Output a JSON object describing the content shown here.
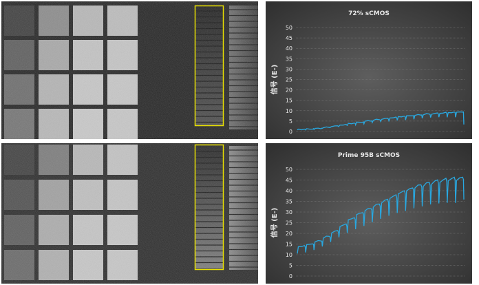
{
  "charts": [
    {
      "title": "72% sCMOS",
      "ylabel": "信号 (E-)",
      "ylim": [
        0,
        50
      ],
      "yticks": [
        "0",
        "5",
        "10",
        "15",
        "20",
        "25",
        "30",
        "35",
        "40",
        "45",
        "50"
      ]
    },
    {
      "title": "Prime 95B sCMOS",
      "ylabel": "信号 (E-)",
      "ylim": [
        0,
        50
      ],
      "yticks": [
        "0",
        "5",
        "10",
        "15",
        "20",
        "25",
        "30",
        "35",
        "40",
        "45",
        "50"
      ]
    }
  ],
  "chart_data": [
    {
      "type": "line",
      "title": "72% sCMOS",
      "ylabel": "信号 (E-)",
      "xlabel": "",
      "ylim": [
        0,
        50
      ],
      "grid": true,
      "series_color": "#29a8e0",
      "steps": [
        1.0,
        1.2,
        1.5,
        2.0,
        2.6,
        3.2,
        3.9,
        4.5,
        5.1,
        5.7,
        6.2,
        6.7,
        7.2,
        7.6,
        8.0,
        8.4,
        8.7,
        9.0,
        9.2,
        9.4
      ],
      "dip_depth_fraction": 0.25,
      "end_value": 3.5
    },
    {
      "type": "line",
      "title": "Prime 95B sCMOS",
      "ylabel": "信号 (E-)",
      "xlabel": "",
      "ylim": [
        0,
        50
      ],
      "grid": true,
      "series_color": "#29a8e0",
      "steps": [
        14.0,
        15.0,
        16.5,
        18.5,
        21.0,
        24.0,
        27.0,
        29.5,
        31.5,
        33.5,
        35.5,
        37.5,
        39.5,
        41.0,
        42.5,
        43.5,
        44.5,
        45.2,
        45.8,
        46.0
      ],
      "dip_depth_fraction": 0.25,
      "end_value": 36.0
    }
  ],
  "images": [
    {
      "name": "72-percent-sensor-image"
    },
    {
      "name": "prime-95b-sensor-image"
    }
  ],
  "colors": {
    "chart_bg_center": "#5b5b5b",
    "chart_bg_edge": "#333333",
    "highlight_box": "#e8e000",
    "line": "#29a8e0",
    "text": "#e8e8e8"
  }
}
